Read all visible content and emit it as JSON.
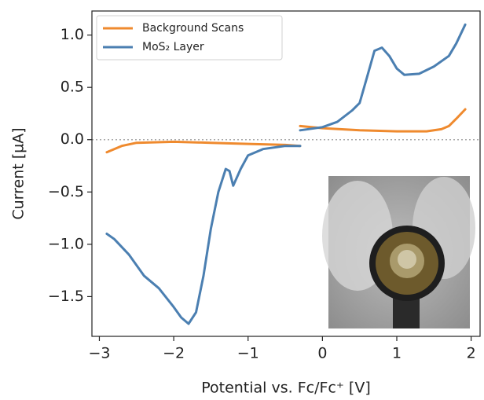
{
  "chart_data": {
    "type": "line",
    "xlabel": "Potential vs. Fc/Fc⁺ [V]",
    "ylabel": "Current [µA]",
    "xlim": [
      -3.1,
      2.12
    ],
    "ylim": [
      -1.88,
      1.23
    ],
    "xticks": [
      {
        "value": -3,
        "label": "−3"
      },
      {
        "value": -2,
        "label": "−2"
      },
      {
        "value": -1,
        "label": "−1"
      },
      0,
      1,
      2
    ],
    "yticks": [
      {
        "value": -1.5,
        "label": "−1.5"
      },
      {
        "value": -1.0,
        "label": "−1.0"
      },
      {
        "value": -0.5,
        "label": "−0.5"
      },
      {
        "value": 0.0,
        "label": "0.0"
      },
      {
        "value": 0.5,
        "label": "0.5"
      },
      {
        "value": 1.0,
        "label": "1.0"
      }
    ],
    "hline": 0,
    "legend": "upper left",
    "series": [
      {
        "name": "Background Scans",
        "color": "#ef8a2e",
        "x": [
          -2.9,
          -2.7,
          -2.5,
          -2.0,
          -1.5,
          -1.0,
          -0.5,
          -0.3,
          null,
          -0.3,
          0,
          0.5,
          1.0,
          1.4,
          1.6,
          1.7,
          1.8,
          1.92
        ],
        "values": [
          -0.12,
          -0.06,
          -0.03,
          -0.02,
          -0.03,
          -0.04,
          -0.05,
          -0.06,
          null,
          0.13,
          0.11,
          0.09,
          0.08,
          0.08,
          0.1,
          0.13,
          0.2,
          0.29
        ]
      },
      {
        "name": "MoS₂ Layer",
        "color": "#4b7fb1",
        "x": [
          -2.9,
          -2.8,
          -2.6,
          -2.4,
          -2.2,
          -2.0,
          -1.9,
          -1.8,
          -1.7,
          -1.6,
          -1.5,
          -1.4,
          -1.3,
          -1.25,
          -1.2,
          -1.1,
          -1.0,
          -0.8,
          -0.5,
          -0.3,
          null,
          -0.3,
          0,
          0.2,
          0.4,
          0.5,
          0.6,
          0.7,
          0.8,
          0.9,
          1.0,
          1.1,
          1.3,
          1.5,
          1.7,
          1.8,
          1.92
        ],
        "values": [
          -0.9,
          -0.95,
          -1.1,
          -1.3,
          -1.42,
          -1.6,
          -1.7,
          -1.76,
          -1.65,
          -1.3,
          -0.85,
          -0.5,
          -0.28,
          -0.3,
          -0.44,
          -0.28,
          -0.15,
          -0.09,
          -0.06,
          -0.06,
          null,
          0.09,
          0.12,
          0.17,
          0.28,
          0.35,
          0.6,
          0.85,
          0.88,
          0.8,
          0.68,
          0.62,
          0.63,
          0.7,
          0.8,
          0.92,
          1.1
        ]
      }
    ]
  }
}
